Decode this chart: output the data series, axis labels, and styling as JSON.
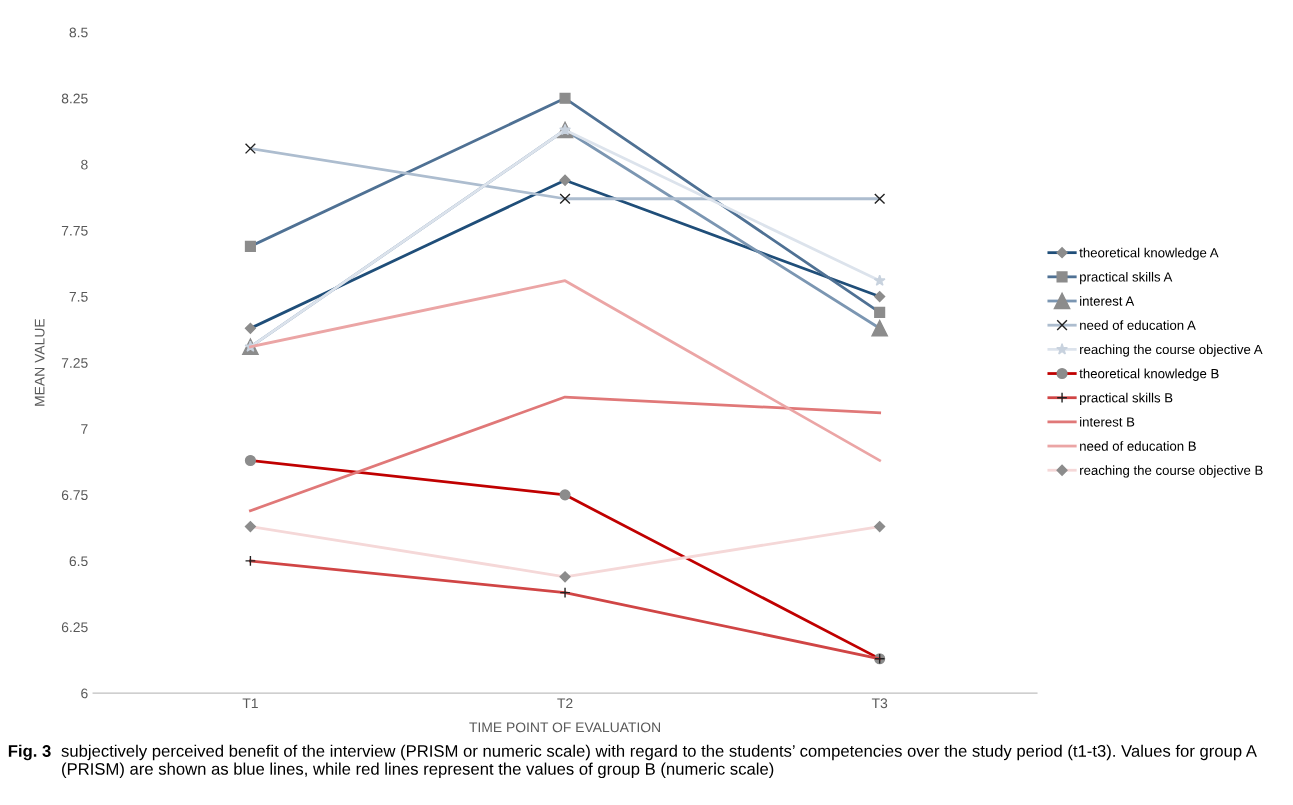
{
  "chart_data": {
    "type": "line",
    "xlabel": "TIME POINT OF EVALUATION",
    "ylabel": "MEAN VALUE",
    "categories": [
      "T1",
      "T2",
      "T3"
    ],
    "ylim": [
      6,
      8.5
    ],
    "yticks": [
      {
        "value": 6,
        "label": "6"
      },
      {
        "value": 6.25,
        "label": "6.25"
      },
      {
        "value": 6.5,
        "label": "6.5"
      },
      {
        "value": 6.75,
        "label": "6.75"
      },
      {
        "value": 7,
        "label": "7"
      },
      {
        "value": 7.25,
        "label": "7.25"
      },
      {
        "value": 7.5,
        "label": "7.5"
      },
      {
        "value": 7.75,
        "label": "7.75"
      },
      {
        "value": 8,
        "label": "8"
      },
      {
        "value": 8.25,
        "label": "8.25"
      },
      {
        "value": 8.5,
        "label": "8.5"
      }
    ],
    "grid": false,
    "legend": "right",
    "line_style": "solid",
    "series": [
      {
        "name": "theoretical knowledge A",
        "color": "#1f4e79",
        "marker": "diamond",
        "values": [
          7.38,
          7.94,
          7.5
        ]
      },
      {
        "name": "practical skills A",
        "color": "#4f7194",
        "marker": "square",
        "values": [
          7.69,
          8.25,
          7.44
        ]
      },
      {
        "name": "interest A",
        "color": "#7b96b2",
        "marker": "triangle",
        "values": [
          7.31,
          8.13,
          7.38
        ]
      },
      {
        "name": "need of education A",
        "color": "#adbdcf",
        "marker": "cross",
        "values": [
          8.06,
          7.87,
          7.87
        ]
      },
      {
        "name": "reaching the course objective A",
        "color": "#dce3ec",
        "marker": "star",
        "values": [
          7.31,
          8.13,
          7.56
        ]
      },
      {
        "name": "theoretical knowledge B",
        "color": "#c00000",
        "marker": "circle",
        "values": [
          6.88,
          6.75,
          6.13
        ]
      },
      {
        "name": "practical skills B",
        "color": "#d04545",
        "marker": "plus",
        "values": [
          6.5,
          6.38,
          6.13
        ]
      },
      {
        "name": "interest B",
        "color": "#e07878",
        "marker": "none",
        "values": [
          6.69,
          7.12,
          7.06
        ]
      },
      {
        "name": "need of education B",
        "color": "#eba5a5",
        "marker": "none",
        "values": [
          7.31,
          7.56,
          6.88
        ]
      },
      {
        "name": "reaching the course objective B",
        "color": "#f5d8d8",
        "marker": "diamond",
        "values": [
          6.63,
          6.44,
          6.63
        ]
      }
    ],
    "annotations": [
      "Fig. 3",
      "subjectively perceived benefit of the interview (PRISM or numeric scale) with regard to the students’ competencies over the study period (t1-t3). Values for group A (PRISM) are shown as blue lines, while red lines represent the values of group B (numeric scale)"
    ]
  }
}
